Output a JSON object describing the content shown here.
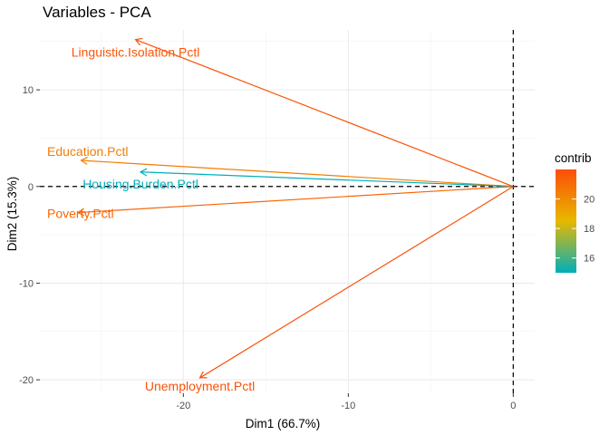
{
  "chart_data": {
    "type": "pca_variables",
    "title": "Variables - PCA",
    "xlabel": "Dim1 (66.7%)",
    "ylabel": "Dim2 (15.3%)",
    "xlim": [
      -28.7,
      1.3
    ],
    "ylim": [
      -21.4,
      16.2
    ],
    "x_ticks": [
      -20,
      -10,
      0
    ],
    "y_ticks": [
      -20,
      -10,
      0,
      10
    ],
    "grid": true,
    "reference_lines": {
      "x": 0,
      "y": 0,
      "style": "dashed"
    },
    "variables": [
      {
        "name": "Linguistic.Isolation.Pctl",
        "x": -22.9,
        "y": 15.2,
        "contrib": 21.8
      },
      {
        "name": "Education.Pctl",
        "x": -26.2,
        "y": 2.7,
        "contrib": 20.4
      },
      {
        "name": "Housing.Burden.Pctl",
        "x": -22.6,
        "y": 1.5,
        "contrib": 15.0
      },
      {
        "name": "Poverty.Pctl",
        "x": -26.4,
        "y": -2.7,
        "contrib": 21.2
      },
      {
        "name": "Unemployment.Pctl",
        "x": -19.0,
        "y": -19.8,
        "contrib": 21.9
      }
    ],
    "legend": {
      "title": "contrib",
      "position": "right",
      "ticks": [
        16,
        18,
        20
      ],
      "range": [
        15.0,
        22.0
      ],
      "colors": [
        "#00AFBB",
        "#E7B800",
        "#FC4E07"
      ]
    }
  }
}
